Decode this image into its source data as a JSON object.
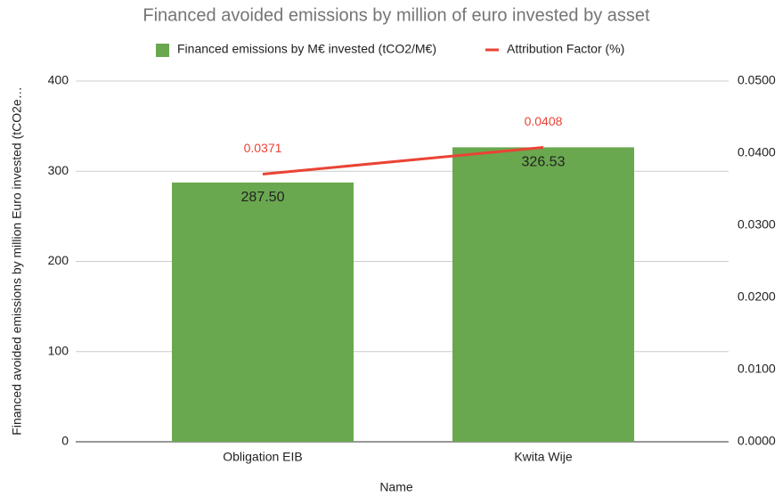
{
  "chart_data": {
    "type": "combo",
    "title": "Financed avoided emissions by million of euro invested by asset",
    "x_label": "Name",
    "y_label": "Financed avoided emissions by million Euro invested (tCO2e…",
    "categories": [
      "Obligation EIB",
      "Kwita Wije"
    ],
    "series": [
      {
        "name": "Financed emissions by M€ invested (tCO2/M€)",
        "type": "bar",
        "color": "#6aa84f",
        "values": [
          287.5,
          326.53
        ],
        "value_labels": [
          "287.50",
          "326.53"
        ]
      },
      {
        "name": "Attribution Factor (%)",
        "type": "line",
        "axis": "y2",
        "color": "#ea4335",
        "values": [
          0.0371,
          0.0408
        ]
      }
    ],
    "ylim": [
      0,
      400
    ],
    "yticks": [
      0,
      100,
      200,
      300,
      400
    ],
    "y2lim": [
      0,
      0.05
    ],
    "y2ticks": [
      {
        "value": 0,
        "label": "0.0000"
      },
      {
        "value": 0.01,
        "label": "0.0100"
      },
      {
        "value": 0.02,
        "label": "0.0200"
      },
      {
        "value": 0.03,
        "label": "0.0300"
      },
      {
        "value": 0.04,
        "label": "0.0400"
      },
      {
        "value": 0.05,
        "label": "0.0500"
      }
    ],
    "grid": true,
    "legend": "top"
  }
}
